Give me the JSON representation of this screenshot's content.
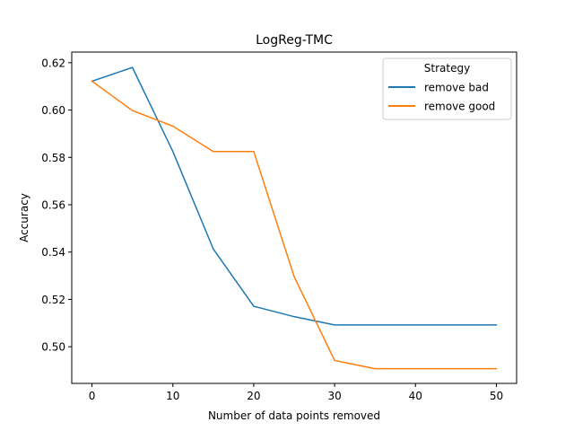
{
  "chart_data": {
    "type": "line",
    "title": "LogReg-TMC",
    "xlabel": "Number of data points removed",
    "ylabel": "Accuracy",
    "xlim": [
      -2.5,
      52.5
    ],
    "ylim": [
      0.4845,
      0.6245
    ],
    "x": [
      0,
      5,
      10,
      15,
      20,
      25,
      30,
      35,
      40,
      45,
      50
    ],
    "xticks": [
      0,
      10,
      20,
      30,
      40,
      50
    ],
    "yticks": [
      0.5,
      0.52,
      0.54,
      0.56,
      0.58,
      0.6,
      0.62
    ],
    "ytick_labels": [
      "0.50",
      "0.52",
      "0.54",
      "0.56",
      "0.58",
      "0.60",
      "0.62"
    ],
    "grid": false,
    "legend": {
      "title": "Strategy",
      "position": "top-right"
    },
    "series": [
      {
        "name": "remove bad",
        "color": "#1f77b4",
        "values": [
          0.6122,
          0.618,
          0.5825,
          0.5413,
          0.5171,
          0.5127,
          0.5092,
          0.5092,
          0.5092,
          0.5092,
          0.5092
        ]
      },
      {
        "name": "remove good",
        "color": "#ff7f0e",
        "values": [
          0.6122,
          0.5998,
          0.5932,
          0.5825,
          0.5825,
          0.5296,
          0.4942,
          0.4907,
          0.4907,
          0.4907,
          0.4907
        ]
      }
    ]
  }
}
